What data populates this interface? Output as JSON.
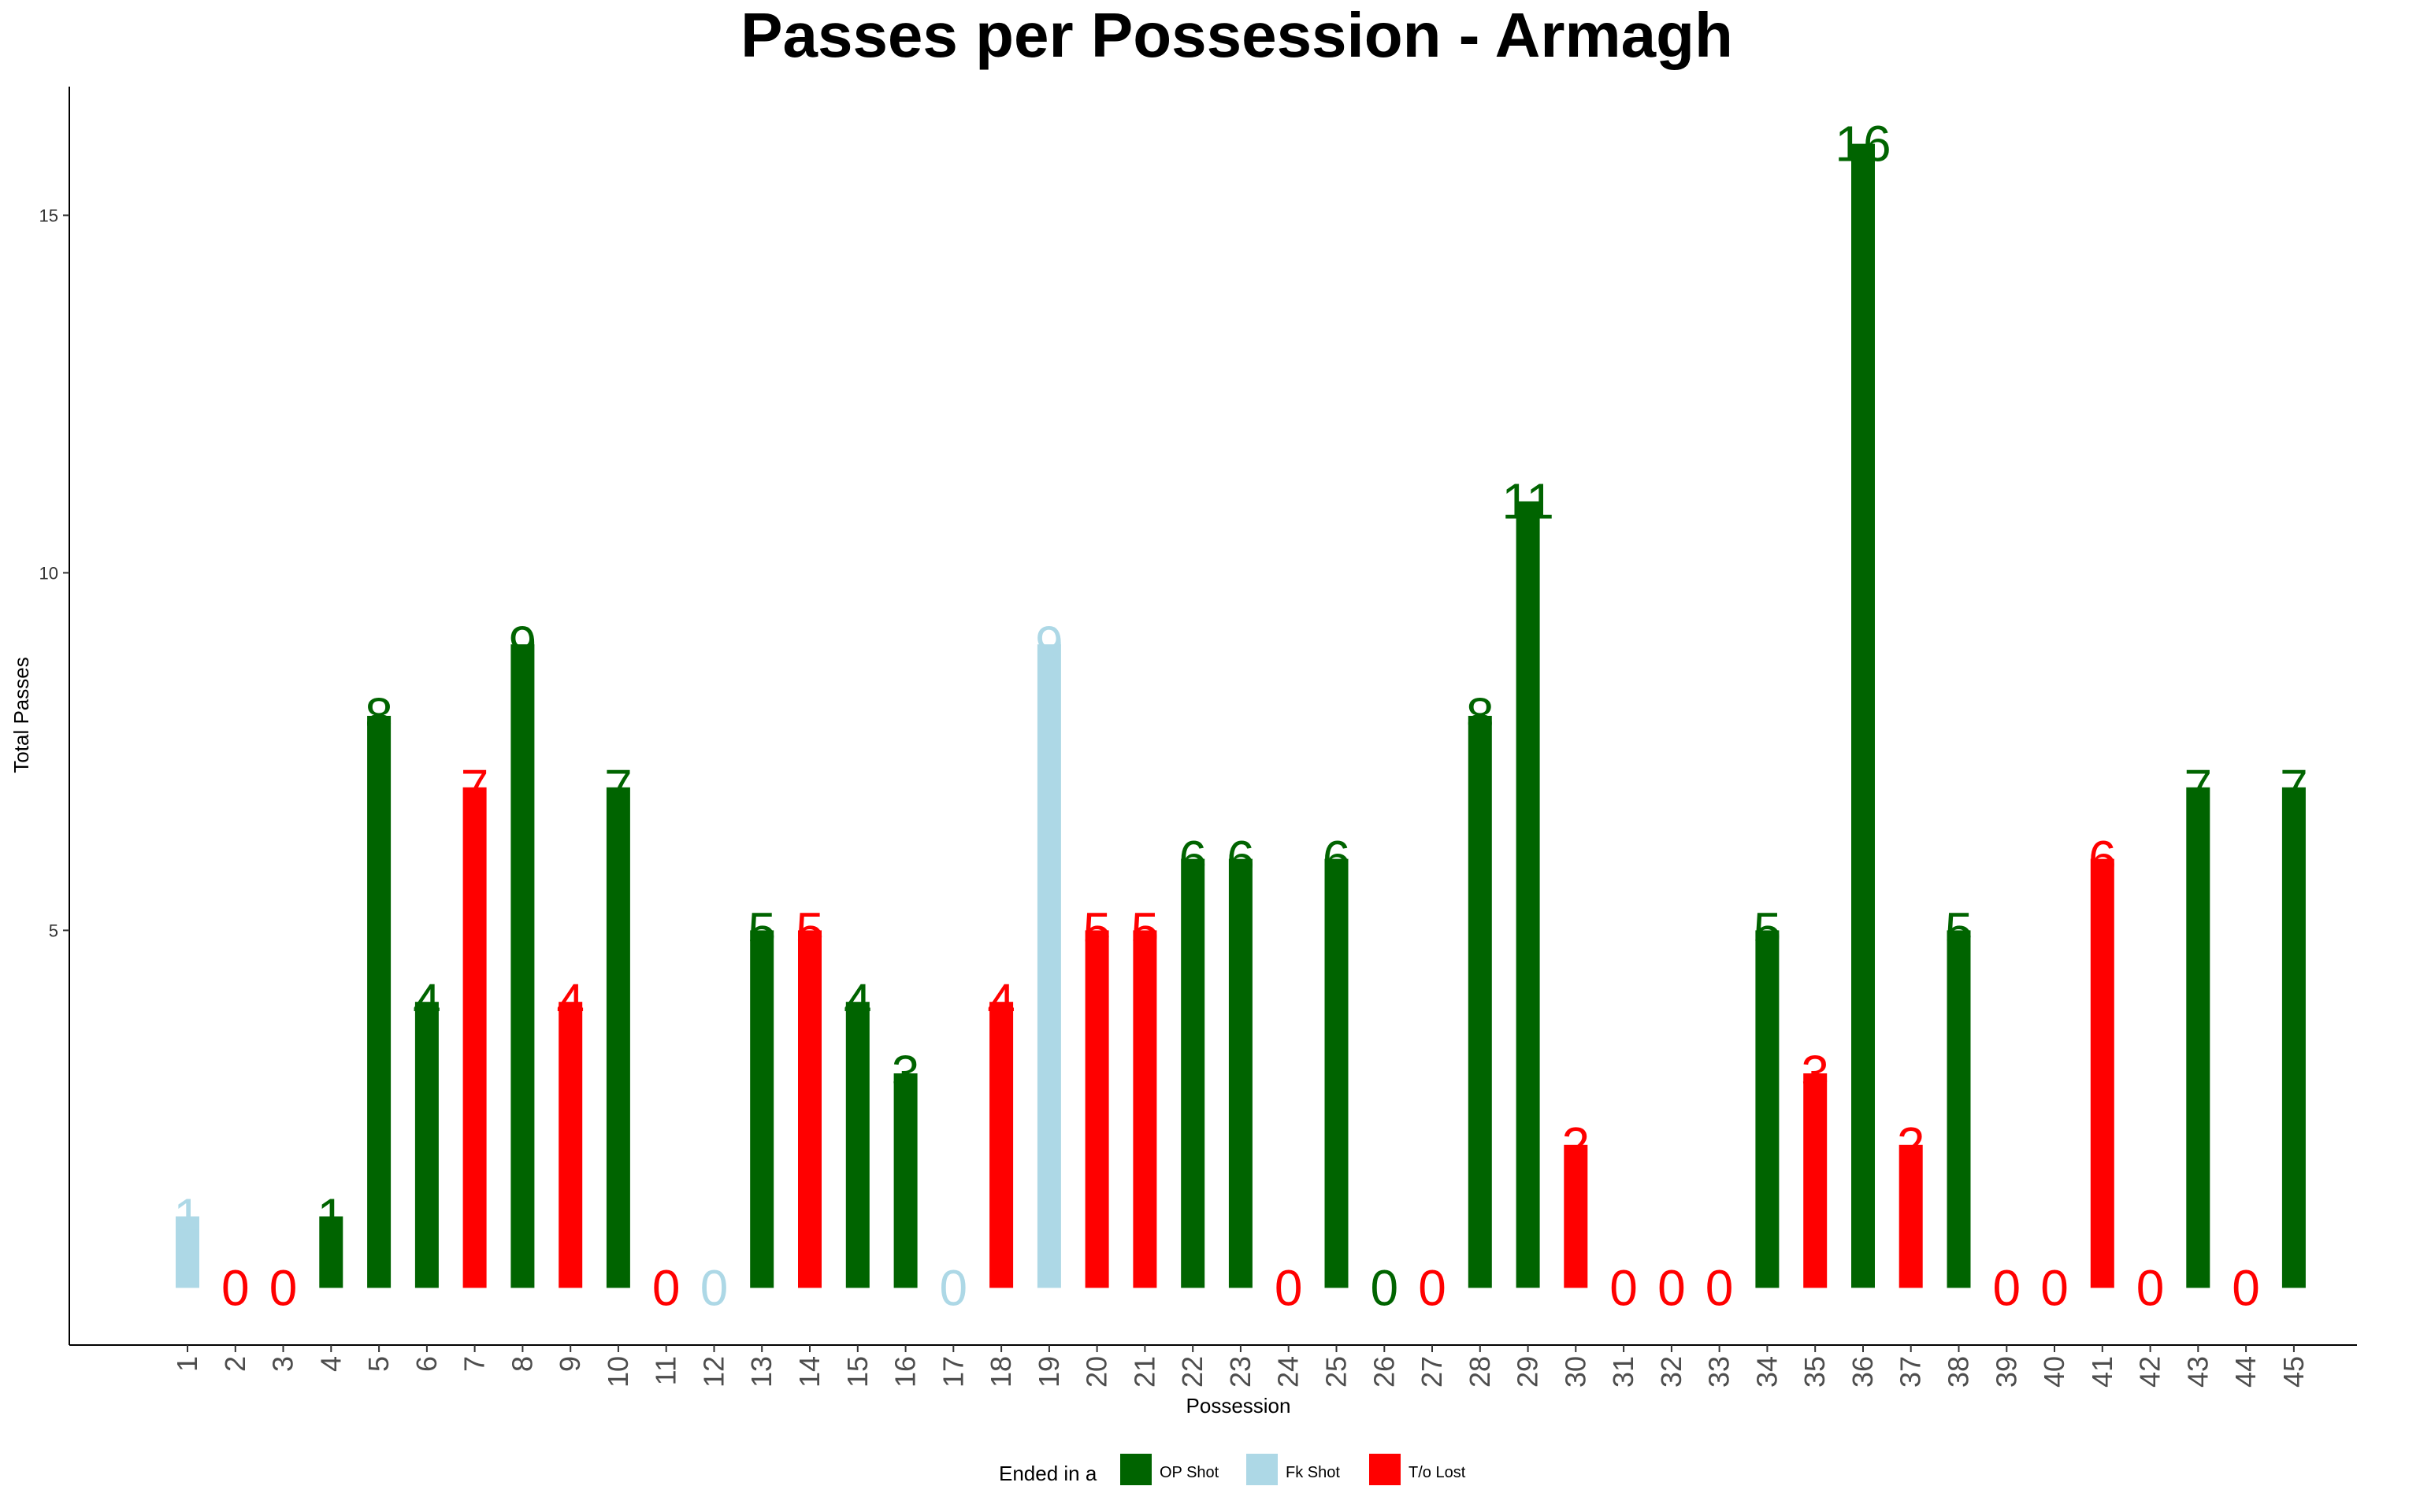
{
  "chart_data": {
    "type": "bar",
    "title": "Passes per Possession - Armagh",
    "xlabel": "Possession",
    "ylabel": "Total Passes",
    "ylim": [
      -0.8,
      16.8
    ],
    "yticks": [
      "5",
      "10",
      "15"
    ],
    "ytick_values": [
      5,
      10,
      15
    ],
    "grid": false,
    "legend": {
      "position": "bottom",
      "title": "Ended in a",
      "entries": [
        {
          "key": "OP",
          "label": "OP Shot",
          "color": "#006400"
        },
        {
          "key": "FK",
          "label": "Fk Shot",
          "color": "#ADD8E6"
        },
        {
          "key": "TO",
          "label": "T/o Lost",
          "color": "#FF0000"
        }
      ]
    },
    "categories": [
      "1",
      "2",
      "3",
      "4",
      "5",
      "6",
      "7",
      "8",
      "9",
      "10",
      "11",
      "12",
      "13",
      "14",
      "15",
      "16",
      "17",
      "18",
      "19",
      "20",
      "21",
      "22",
      "23",
      "24",
      "25",
      "26",
      "27",
      "28",
      "29",
      "30",
      "31",
      "32",
      "33",
      "34",
      "35",
      "36",
      "37",
      "38",
      "39",
      "40",
      "41",
      "42",
      "43",
      "44",
      "45"
    ],
    "values": [
      1,
      0,
      0,
      1,
      8,
      4,
      7,
      9,
      4,
      7,
      0,
      0,
      5,
      5,
      4,
      3,
      0,
      4,
      9,
      5,
      5,
      6,
      6,
      0,
      6,
      0,
      0,
      8,
      11,
      2,
      0,
      0,
      0,
      5,
      3,
      16,
      2,
      5,
      0,
      0,
      6,
      0,
      7,
      0,
      7
    ],
    "value_labels": [
      "1",
      "0",
      "0",
      "1",
      "8",
      "4",
      "7",
      "9",
      "4",
      "7",
      "0",
      "0",
      "5",
      "5",
      "4",
      "3",
      "0",
      "4",
      "9",
      "5",
      "5",
      "6",
      "6",
      "0",
      "6",
      "0",
      "0",
      "8",
      "11",
      "2",
      "0",
      "0",
      "0",
      "5",
      "3",
      "16",
      "2",
      "5",
      "0",
      "0",
      "6",
      "0",
      "7",
      "0",
      "7"
    ],
    "outcomes": [
      "FK",
      "TO",
      "TO",
      "OP",
      "OP",
      "OP",
      "TO",
      "OP",
      "TO",
      "OP",
      "TO",
      "FK",
      "OP",
      "TO",
      "OP",
      "OP",
      "FK",
      "TO",
      "FK",
      "TO",
      "TO",
      "OP",
      "OP",
      "TO",
      "OP",
      "OP",
      "TO",
      "OP",
      "OP",
      "TO",
      "TO",
      "TO",
      "TO",
      "OP",
      "TO",
      "OP",
      "TO",
      "OP",
      "TO",
      "TO",
      "TO",
      "TO",
      "OP",
      "TO",
      "OP"
    ]
  }
}
